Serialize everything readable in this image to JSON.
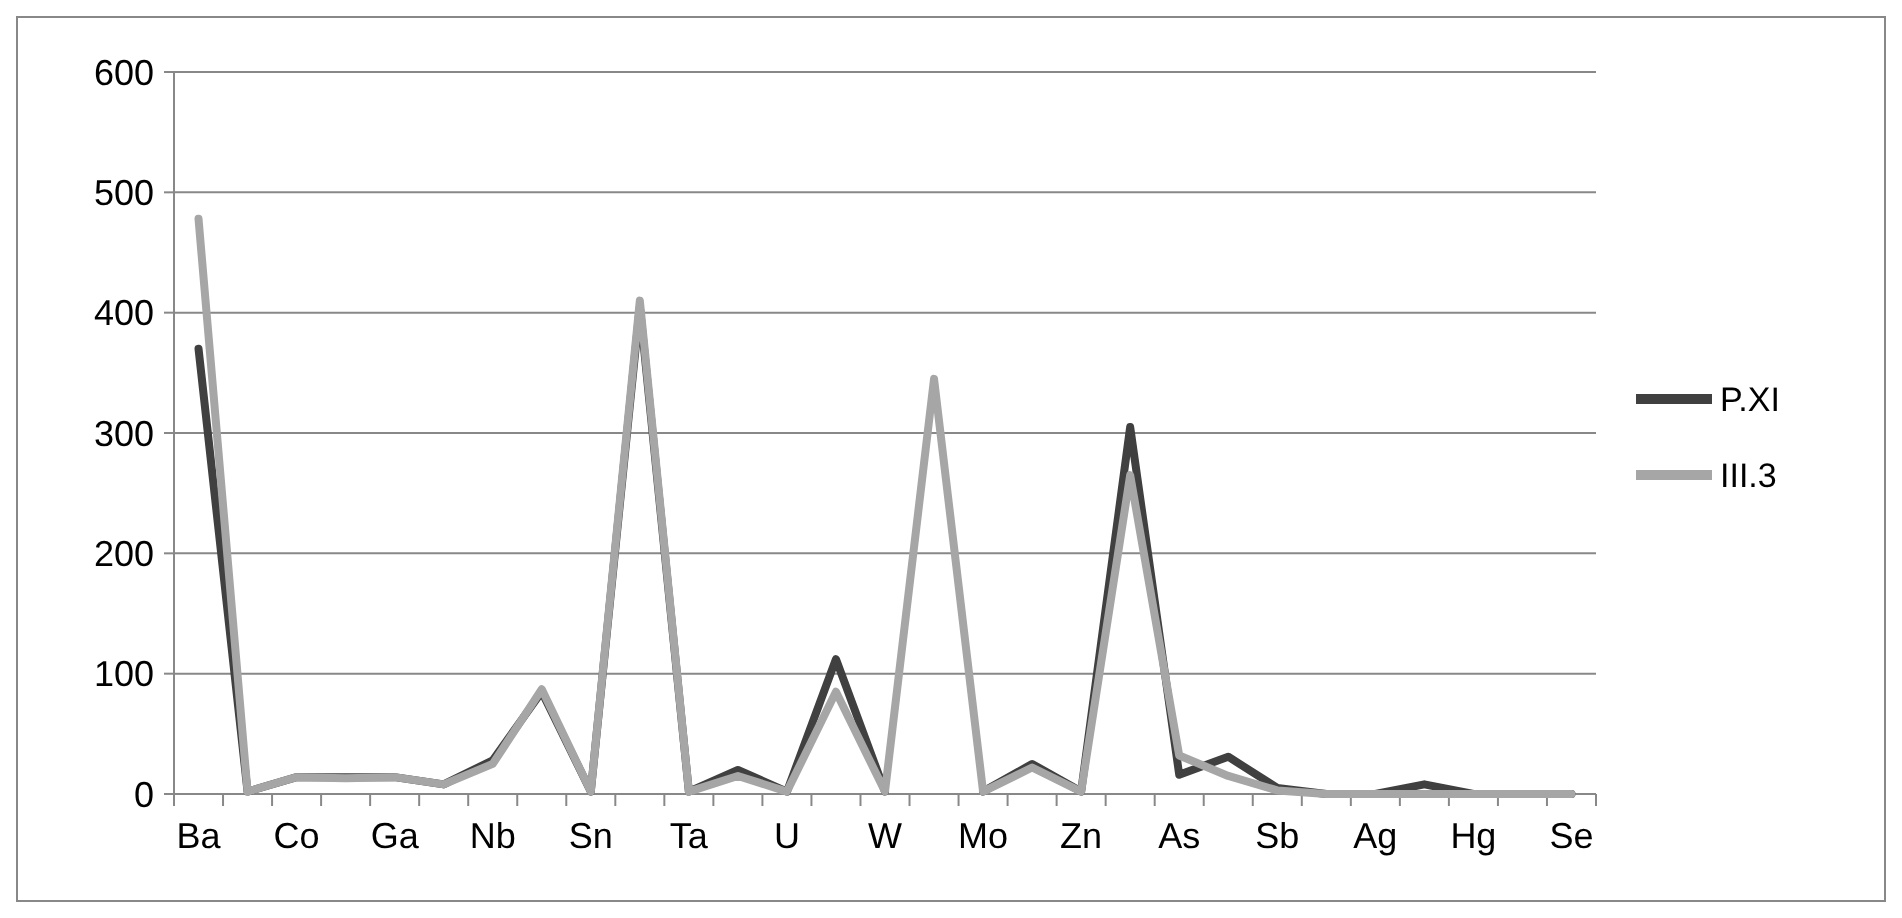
{
  "chart_data": {
    "type": "line",
    "categories": [
      "Ba",
      null,
      "Co",
      null,
      "Ga",
      null,
      "Nb",
      null,
      "Sn",
      null,
      "Ta",
      null,
      "U",
      null,
      "W",
      null,
      "Mo",
      null,
      "Zn",
      null,
      "As",
      null,
      "Sb",
      null,
      "Ag",
      null,
      "Hg",
      null,
      "Se"
    ],
    "series": [
      {
        "name": "P.XI",
        "color": "#404040",
        "values": [
          370,
          2,
          14,
          14,
          14,
          8,
          28,
          85,
          2,
          405,
          2,
          20,
          2,
          112,
          2,
          null,
          2,
          25,
          2,
          305,
          16,
          31,
          5,
          0,
          0,
          8,
          0,
          0,
          0
        ]
      },
      {
        "name": "III.3",
        "color": "#a6a6a6",
        "values": [
          478,
          2,
          14,
          13,
          14,
          8,
          25,
          87,
          2,
          410,
          2,
          15,
          2,
          85,
          2,
          345,
          2,
          22,
          2,
          265,
          32,
          15,
          3,
          0,
          0,
          0,
          0,
          0,
          0
        ]
      }
    ],
    "ylim": [
      0,
      600
    ],
    "yticks": [
      0,
      100,
      200,
      300,
      400,
      500,
      600
    ],
    "grid": "y",
    "legend": "right",
    "marker": "none",
    "line_style": "solid"
  }
}
